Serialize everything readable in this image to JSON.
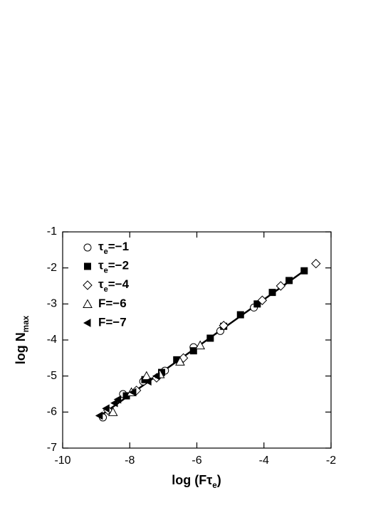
{
  "chart_data": {
    "type": "scatter",
    "xlabel": "log (Fτe)",
    "ylabel": "log Nmax",
    "xlim": [
      -10,
      -2
    ],
    "ylim": [
      -7,
      -1
    ],
    "xticks": [
      -10,
      -8,
      -6,
      -4,
      -2
    ],
    "yticks": [
      -7,
      -6,
      -5,
      -4,
      -3,
      -2,
      -1
    ],
    "legend": "upper left",
    "series": [
      {
        "name": "τe=−1",
        "marker": "circle",
        "color": "#000000",
        "x": [
          -8.8,
          -8.2,
          -7.6,
          -6.95,
          -6.1,
          -5.3,
          -4.3
        ],
        "values": [
          -6.15,
          -5.5,
          -5.15,
          -4.85,
          -4.2,
          -3.75,
          -3.1
        ]
      },
      {
        "name": "τe=−2",
        "marker": "square",
        "color": "#000000",
        "x": [
          -8.1,
          -7.55,
          -7.05,
          -6.6,
          -6.1,
          -5.6,
          -5.2,
          -4.7,
          -4.2,
          -3.75,
          -3.25,
          -2.8
        ],
        "values": [
          -5.55,
          -5.1,
          -4.9,
          -4.55,
          -4.3,
          -3.95,
          -3.62,
          -3.3,
          -3.0,
          -2.68,
          -2.35,
          -2.08
        ]
      },
      {
        "name": "τe=−4",
        "marker": "diamond",
        "color": "#000000",
        "x": [
          -8.65,
          -7.8,
          -7.2,
          -6.4,
          -5.2,
          -4.05,
          -3.5,
          -2.45
        ],
        "values": [
          -5.95,
          -5.4,
          -5.05,
          -4.5,
          -3.6,
          -2.9,
          -2.5,
          -1.88
        ]
      },
      {
        "name": "F=−6",
        "marker": "triangle",
        "color": "#000000",
        "x": [
          -8.5,
          -7.95,
          -7.5,
          -7.1,
          -6.5,
          -5.9
        ],
        "values": [
          -6.0,
          -5.45,
          -5.0,
          -4.95,
          -4.6,
          -4.15
        ]
      },
      {
        "name": "F=−7",
        "marker": "left-triangle",
        "color": "#000000",
        "x": [
          -8.9,
          -8.7,
          -8.45,
          -8.35,
          -7.9,
          -7.45,
          -7.2
        ],
        "values": [
          -6.1,
          -5.9,
          -5.75,
          -5.65,
          -5.45,
          -5.15,
          -5.0
        ]
      }
    ],
    "fit": {
      "x": [
        -8.9,
        -2.8
      ],
      "values": [
        -6.12,
        -2.08
      ],
      "color": "#000000"
    }
  }
}
